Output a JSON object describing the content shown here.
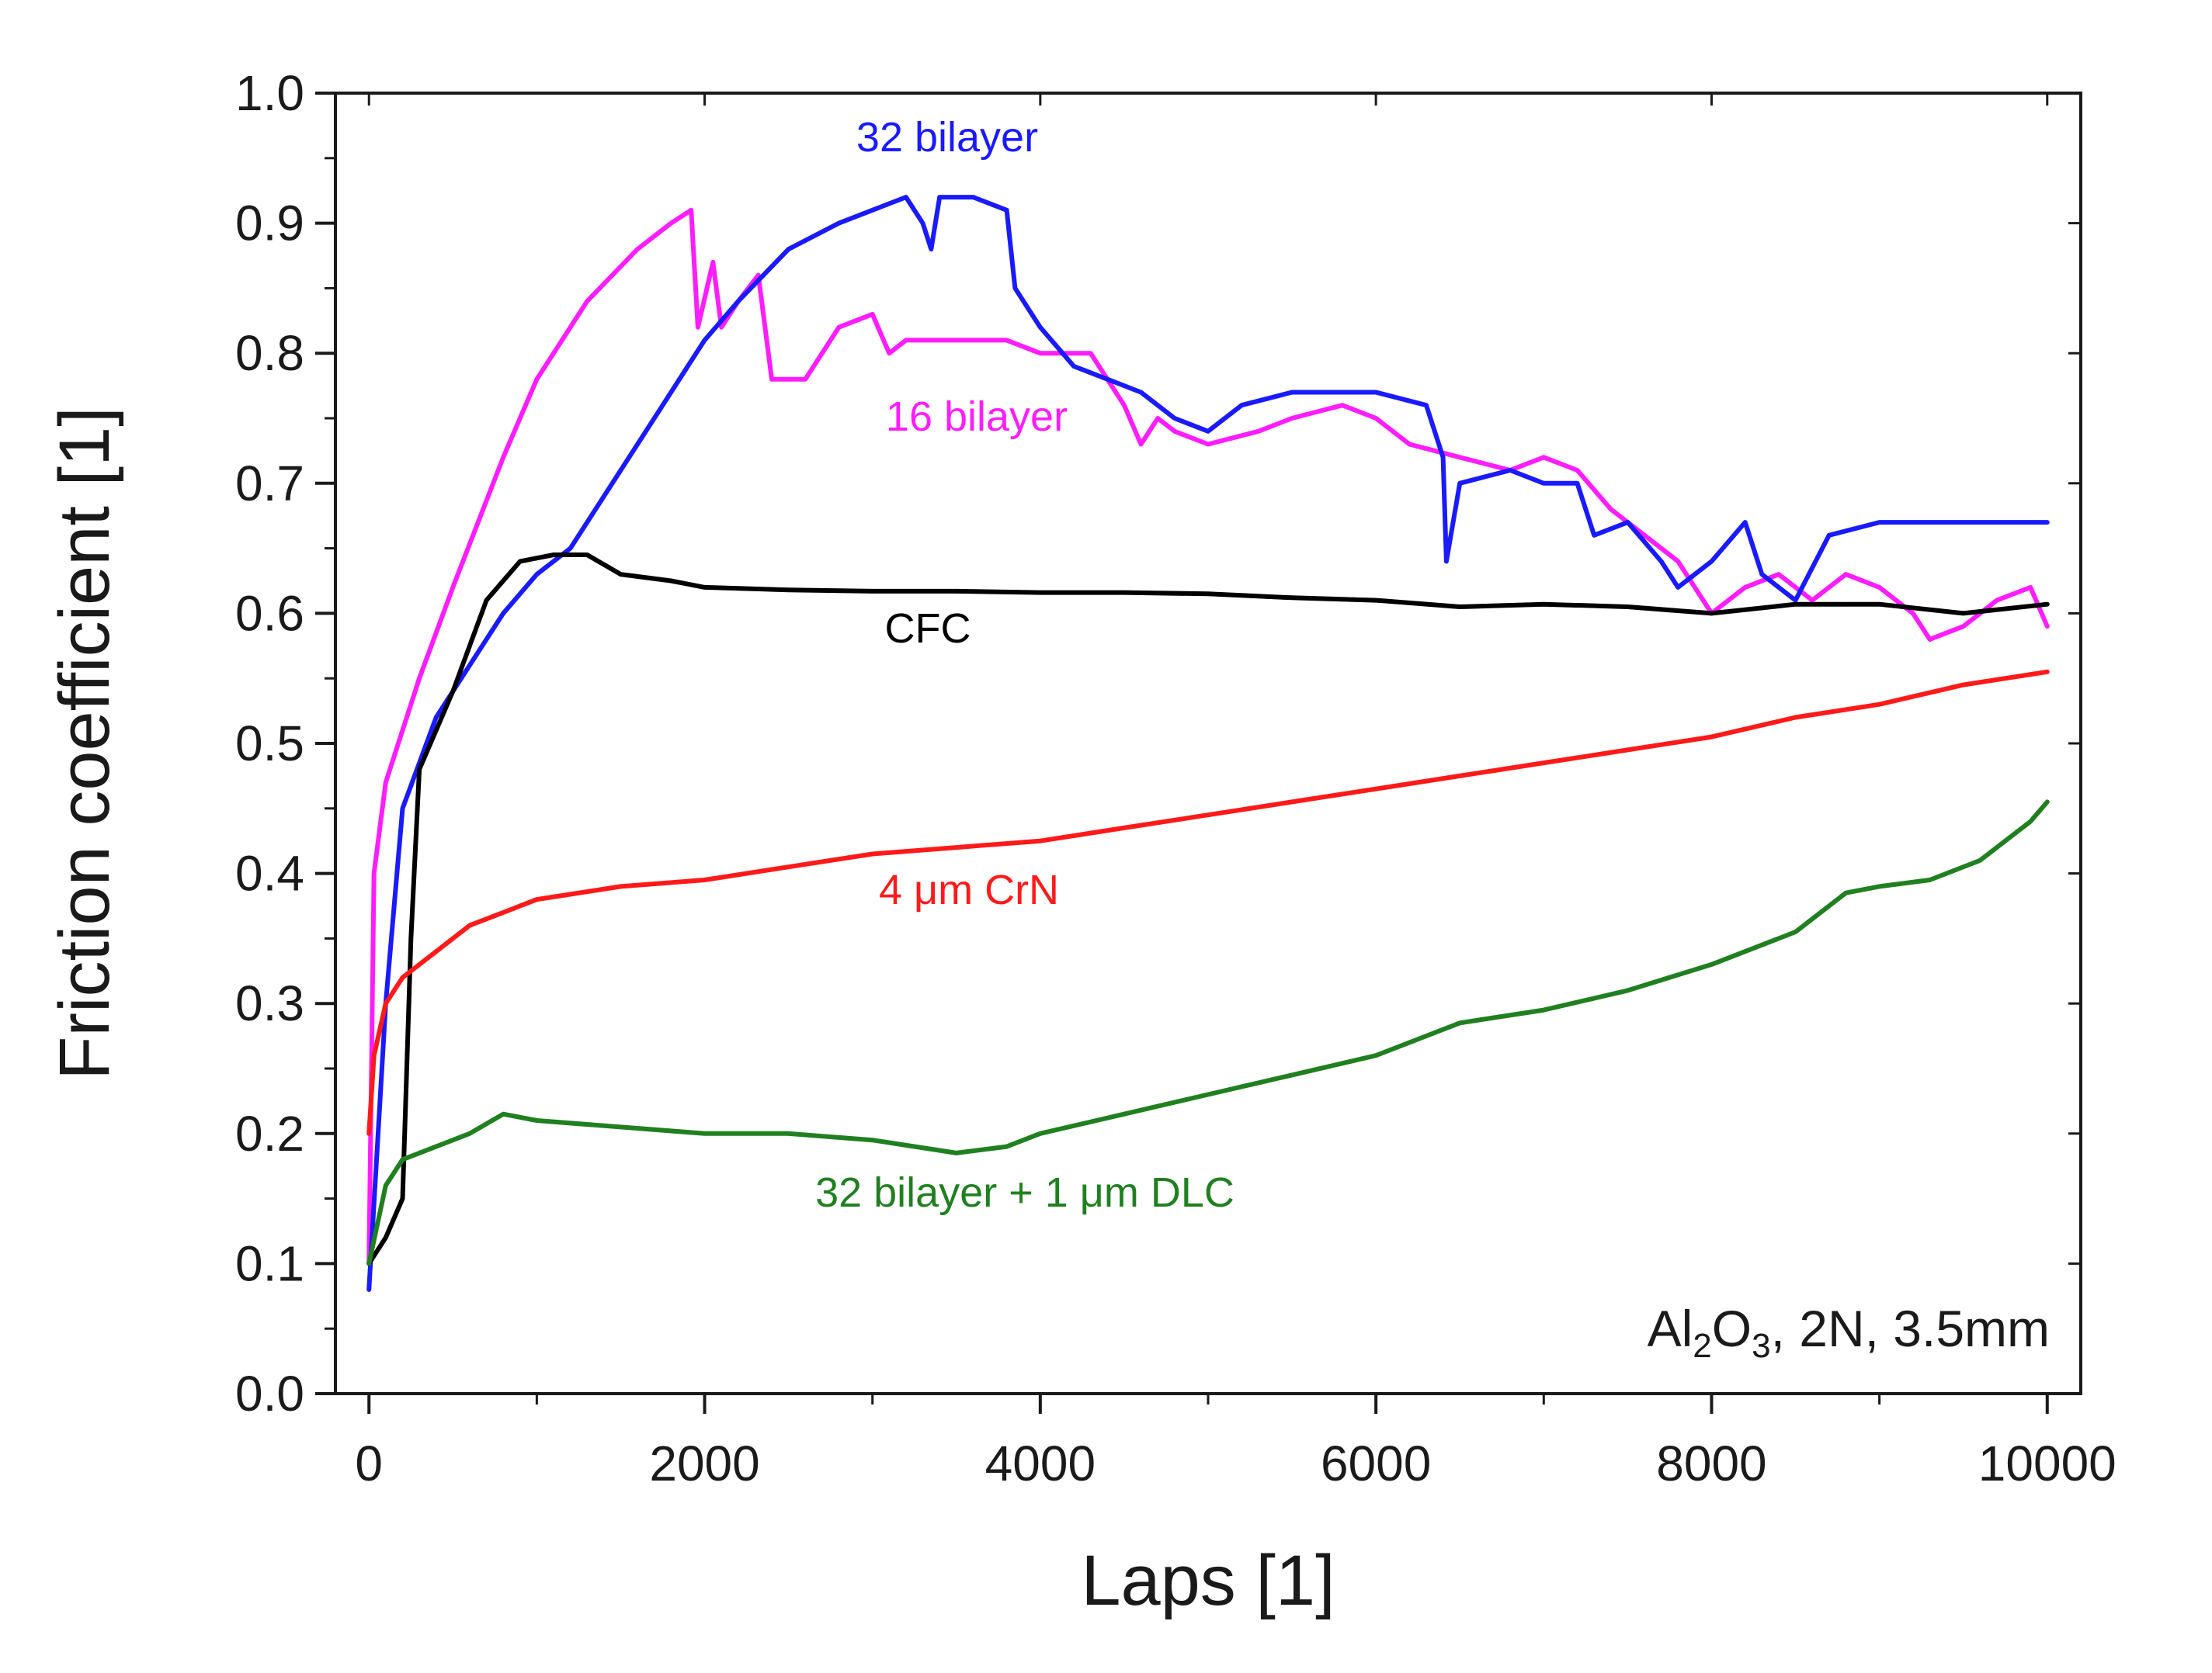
{
  "chart_data": {
    "type": "line",
    "xlabel": "Laps [1]",
    "ylabel": "Friction coefficient [1]",
    "xlim": [
      -200,
      10200
    ],
    "ylim": [
      0.0,
      1.0
    ],
    "x_ticks": [
      0,
      2000,
      4000,
      6000,
      8000,
      10000
    ],
    "x_tick_labels": [
      "0",
      "2000",
      "4000",
      "6000",
      "8000",
      "10000"
    ],
    "y_ticks": [
      0.0,
      0.1,
      0.2,
      0.3,
      0.4,
      0.5,
      0.6,
      0.7,
      0.8,
      0.9,
      1.0
    ],
    "y_tick_labels": [
      "0.0",
      "0.1",
      "0.2",
      "0.3",
      "0.4",
      "0.5",
      "0.6",
      "0.7",
      "0.8",
      "0.9",
      "1.0"
    ],
    "annotation": {
      "prefix": "Al",
      "sub1": "2",
      "mid": "O",
      "sub2": "3",
      "suffix": ", 2N, 3.5mm"
    },
    "series": [
      {
        "name": "16 bilayer",
        "label": "16 bilayer",
        "color": "#ff1dff",
        "points": [
          [
            0,
            0.1
          ],
          [
            30,
            0.4
          ],
          [
            100,
            0.47
          ],
          [
            300,
            0.55
          ],
          [
            500,
            0.62
          ],
          [
            800,
            0.72
          ],
          [
            1000,
            0.78
          ],
          [
            1300,
            0.84
          ],
          [
            1600,
            0.88
          ],
          [
            1800,
            0.9
          ],
          [
            1920,
            0.91
          ],
          [
            1960,
            0.82
          ],
          [
            2050,
            0.87
          ],
          [
            2100,
            0.82
          ],
          [
            2200,
            0.84
          ],
          [
            2320,
            0.86
          ],
          [
            2400,
            0.78
          ],
          [
            2600,
            0.78
          ],
          [
            2800,
            0.82
          ],
          [
            3000,
            0.83
          ],
          [
            3100,
            0.8
          ],
          [
            3200,
            0.81
          ],
          [
            3500,
            0.81
          ],
          [
            3800,
            0.81
          ],
          [
            4000,
            0.8
          ],
          [
            4300,
            0.8
          ],
          [
            4500,
            0.76
          ],
          [
            4600,
            0.73
          ],
          [
            4700,
            0.75
          ],
          [
            4800,
            0.74
          ],
          [
            5000,
            0.73
          ],
          [
            5300,
            0.74
          ],
          [
            5500,
            0.75
          ],
          [
            5800,
            0.76
          ],
          [
            6000,
            0.75
          ],
          [
            6200,
            0.73
          ],
          [
            6500,
            0.72
          ],
          [
            6800,
            0.71
          ],
          [
            7000,
            0.72
          ],
          [
            7200,
            0.71
          ],
          [
            7400,
            0.68
          ],
          [
            7600,
            0.66
          ],
          [
            7800,
            0.64
          ],
          [
            8000,
            0.6
          ],
          [
            8200,
            0.62
          ],
          [
            8400,
            0.63
          ],
          [
            8600,
            0.61
          ],
          [
            8800,
            0.63
          ],
          [
            9000,
            0.62
          ],
          [
            9200,
            0.6
          ],
          [
            9300,
            0.58
          ],
          [
            9500,
            0.59
          ],
          [
            9700,
            0.61
          ],
          [
            9900,
            0.62
          ],
          [
            10000,
            0.59
          ]
        ]
      },
      {
        "name": "32 bilayer",
        "label": "32 bilayer",
        "color": "#1a1aff",
        "points": [
          [
            0,
            0.08
          ],
          [
            100,
            0.3
          ],
          [
            200,
            0.45
          ],
          [
            400,
            0.52
          ],
          [
            600,
            0.56
          ],
          [
            800,
            0.6
          ],
          [
            1000,
            0.63
          ],
          [
            1200,
            0.65
          ],
          [
            1400,
            0.69
          ],
          [
            1600,
            0.73
          ],
          [
            1800,
            0.77
          ],
          [
            2000,
            0.81
          ],
          [
            2200,
            0.84
          ],
          [
            2500,
            0.88
          ],
          [
            2800,
            0.9
          ],
          [
            3000,
            0.91
          ],
          [
            3200,
            0.92
          ],
          [
            3300,
            0.9
          ],
          [
            3350,
            0.88
          ],
          [
            3400,
            0.92
          ],
          [
            3600,
            0.92
          ],
          [
            3800,
            0.91
          ],
          [
            3850,
            0.85
          ],
          [
            4000,
            0.82
          ],
          [
            4200,
            0.79
          ],
          [
            4400,
            0.78
          ],
          [
            4600,
            0.77
          ],
          [
            4800,
            0.75
          ],
          [
            5000,
            0.74
          ],
          [
            5200,
            0.76
          ],
          [
            5500,
            0.77
          ],
          [
            5800,
            0.77
          ],
          [
            6000,
            0.77
          ],
          [
            6300,
            0.76
          ],
          [
            6400,
            0.72
          ],
          [
            6420,
            0.64
          ],
          [
            6500,
            0.7
          ],
          [
            6800,
            0.71
          ],
          [
            7000,
            0.7
          ],
          [
            7200,
            0.7
          ],
          [
            7300,
            0.66
          ],
          [
            7500,
            0.67
          ],
          [
            7700,
            0.64
          ],
          [
            7800,
            0.62
          ],
          [
            8000,
            0.64
          ],
          [
            8200,
            0.67
          ],
          [
            8300,
            0.63
          ],
          [
            8500,
            0.61
          ],
          [
            8700,
            0.66
          ],
          [
            9000,
            0.67
          ],
          [
            9500,
            0.67
          ],
          [
            10000,
            0.67
          ]
        ]
      },
      {
        "name": "CFC",
        "label": "CFC",
        "color": "#000000",
        "points": [
          [
            0,
            0.1
          ],
          [
            100,
            0.12
          ],
          [
            200,
            0.15
          ],
          [
            250,
            0.35
          ],
          [
            300,
            0.48
          ],
          [
            500,
            0.54
          ],
          [
            700,
            0.61
          ],
          [
            900,
            0.64
          ],
          [
            1100,
            0.645
          ],
          [
            1300,
            0.645
          ],
          [
            1500,
            0.63
          ],
          [
            1800,
            0.625
          ],
          [
            2000,
            0.62
          ],
          [
            2500,
            0.618
          ],
          [
            3000,
            0.617
          ],
          [
            3500,
            0.617
          ],
          [
            4000,
            0.616
          ],
          [
            4500,
            0.616
          ],
          [
            5000,
            0.615
          ],
          [
            5500,
            0.612
          ],
          [
            6000,
            0.61
          ],
          [
            6500,
            0.605
          ],
          [
            7000,
            0.607
          ],
          [
            7500,
            0.605
          ],
          [
            8000,
            0.6
          ],
          [
            8500,
            0.607
          ],
          [
            9000,
            0.607
          ],
          [
            9500,
            0.6
          ],
          [
            10000,
            0.607
          ]
        ]
      },
      {
        "name": "4 μm CrN",
        "label": "4 μm CrN",
        "color": "#ff1a1a",
        "points": [
          [
            0,
            0.2
          ],
          [
            30,
            0.26
          ],
          [
            100,
            0.3
          ],
          [
            200,
            0.32
          ],
          [
            400,
            0.34
          ],
          [
            600,
            0.36
          ],
          [
            800,
            0.37
          ],
          [
            1000,
            0.38
          ],
          [
            1500,
            0.39
          ],
          [
            2000,
            0.395
          ],
          [
            2500,
            0.405
          ],
          [
            3000,
            0.415
          ],
          [
            3500,
            0.42
          ],
          [
            4000,
            0.425
          ],
          [
            4500,
            0.435
          ],
          [
            5000,
            0.445
          ],
          [
            5500,
            0.455
          ],
          [
            6000,
            0.465
          ],
          [
            6500,
            0.475
          ],
          [
            7000,
            0.485
          ],
          [
            7500,
            0.495
          ],
          [
            8000,
            0.505
          ],
          [
            8500,
            0.52
          ],
          [
            9000,
            0.53
          ],
          [
            9500,
            0.545
          ],
          [
            10000,
            0.555
          ]
        ]
      },
      {
        "name": "32 bilayer + 1 μm DLC",
        "label": "32 bilayer + 1 μm DLC",
        "color": "#208020",
        "points": [
          [
            0,
            0.1
          ],
          [
            50,
            0.13
          ],
          [
            100,
            0.16
          ],
          [
            200,
            0.18
          ],
          [
            400,
            0.19
          ],
          [
            600,
            0.2
          ],
          [
            800,
            0.215
          ],
          [
            1000,
            0.21
          ],
          [
            1500,
            0.205
          ],
          [
            2000,
            0.2
          ],
          [
            2500,
            0.2
          ],
          [
            3000,
            0.195
          ],
          [
            3500,
            0.185
          ],
          [
            3800,
            0.19
          ],
          [
            4000,
            0.2
          ],
          [
            4500,
            0.215
          ],
          [
            5000,
            0.23
          ],
          [
            5500,
            0.245
          ],
          [
            6000,
            0.26
          ],
          [
            6500,
            0.285
          ],
          [
            7000,
            0.295
          ],
          [
            7500,
            0.31
          ],
          [
            8000,
            0.33
          ],
          [
            8500,
            0.355
          ],
          [
            8800,
            0.385
          ],
          [
            9000,
            0.39
          ],
          [
            9300,
            0.395
          ],
          [
            9600,
            0.41
          ],
          [
            9900,
            0.44
          ],
          [
            10000,
            0.455
          ]
        ]
      }
    ]
  }
}
